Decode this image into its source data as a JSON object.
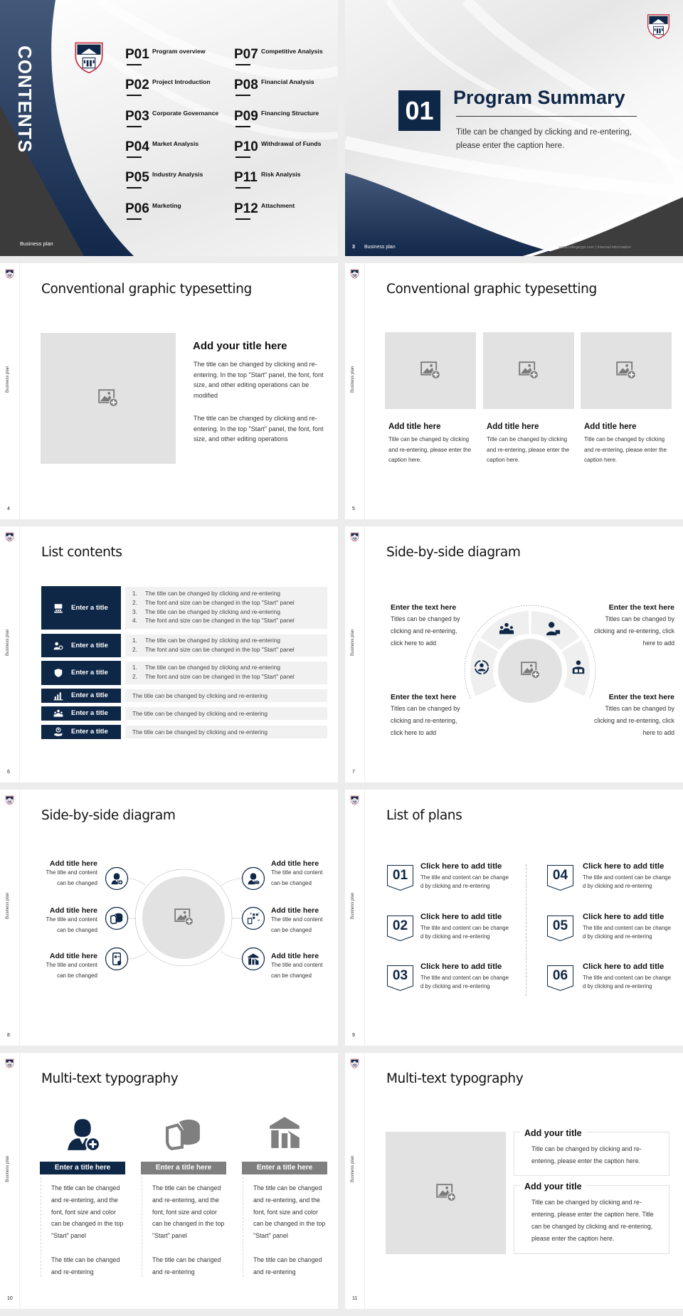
{
  "footer_label": "Business plan",
  "colors": {
    "navy": "#0f2747",
    "gray_bar": "#7f7f7f",
    "placeholder": "#e3e2e2",
    "dark_gray": "#3b3b3b",
    "logo_red": "#c8344a"
  },
  "contents": {
    "title": "CONTENTS",
    "items": [
      {
        "code": "P01",
        "label": "Program overview"
      },
      {
        "code": "P02",
        "label": "Project Introduction"
      },
      {
        "code": "P03",
        "label": "Corporate Governance"
      },
      {
        "code": "P04",
        "label": "Market Analysis"
      },
      {
        "code": "P05",
        "label": "Industry Analysis"
      },
      {
        "code": "P06",
        "label": "Marketing"
      },
      {
        "code": "P07",
        "label": "Competitive Analysis"
      },
      {
        "code": "P08",
        "label": "Financial Analysis"
      },
      {
        "code": "P09",
        "label": "Financing Structure"
      },
      {
        "code": "P10",
        "label": "Withdrawal of Funds"
      },
      {
        "code": "P11",
        "label": "Risk Analysis"
      },
      {
        "code": "P12",
        "label": "Attachment"
      }
    ]
  },
  "section": {
    "page": "3",
    "number": "01",
    "title": "Program Summary",
    "caption": "Title can be changed by clicking and re-entering, please enter the caption here.",
    "url": "www.collegeppt.com | Internal information"
  },
  "p4": {
    "page": "4",
    "title": "Conventional graphic typesetting",
    "heading": "Add your title here",
    "para1": "The title can be changed by clicking and re-entering. In the top \"Start\" panel, the font, font size, and other editing operations can be modified",
    "para2": "The title can be changed by clicking and re-entering. In the top \"Start\" panel, the font, font size, and other editing operations"
  },
  "p5": {
    "page": "5",
    "title": "Conventional graphic typesetting",
    "cards": [
      {
        "title": "Add title here",
        "text": "Title can be changed by clicking and re-entering, please enter the caption here."
      },
      {
        "title": "Add title here",
        "text": "Title can be changed by clicking and re-entering, please enter the caption here."
      },
      {
        "title": "Add title here",
        "text": "Title can be changed by clicking and re-entering, please enter the caption here."
      }
    ]
  },
  "p6": {
    "page": "6",
    "title": "List contents",
    "rows": [
      {
        "label": "Enter a title",
        "icon": "presentation-icon",
        "lines": [
          "The title can be changed by clicking and re-entering",
          "The font and size can be changed in the top \"Start\" panel",
          "The title can be changed by clicking and re-entering",
          "The font and size can be changed in the top \"Start\" panel"
        ]
      },
      {
        "label": "Enter a title",
        "icon": "users-icon",
        "lines": [
          "The title can be changed by clicking and re-entering",
          "The font and size can be changed in the top \"Start\" panel"
        ]
      },
      {
        "label": "Enter a title",
        "icon": "shield-icon",
        "lines": [
          "The title can be changed by clicking and re-entering",
          "The font and size can be changed in the top \"Start\" panel"
        ]
      },
      {
        "label": "Enter a title",
        "icon": "bar-chart-icon",
        "text": "The title can be changed by clicking and re-entering"
      },
      {
        "label": "Enter a title",
        "icon": "team-icon",
        "text": "The title can be changed by clicking and re-entering"
      },
      {
        "label": "Enter a title",
        "icon": "hand-user-icon",
        "text": "The title can be changed by clicking and re-entering"
      }
    ]
  },
  "p7": {
    "page": "7",
    "title": "Side-by-side diagram",
    "blocks": [
      {
        "title": "Enter the text here",
        "text": "Titles can be changed by clicking and re-entering, click here to add"
      },
      {
        "title": "Enter the text here",
        "text": "Titles can be changed by clicking and re-entering, click here to add"
      },
      {
        "title": "Enter the text here",
        "text": "Titles can be changed by clicking and re-entering, click here to add"
      },
      {
        "title": "Enter the text here",
        "text": "Titles can be changed by clicking and re-entering, click here to add"
      }
    ],
    "icons": [
      "user-cycle-icon",
      "team-icon",
      "user-contact-icon",
      "reader-icon"
    ]
  },
  "p8": {
    "page": "8",
    "title": "Side-by-side diagram",
    "items": [
      {
        "title": "Add title here",
        "text": "The title and content can be changed",
        "icon": "user-add-icon"
      },
      {
        "title": "Add title here",
        "text": "The title and content can be changed",
        "icon": "pie-chart-3d-icon"
      },
      {
        "title": "Add title here",
        "text": "The title and content can be changed",
        "icon": "mobile-contact-icon"
      },
      {
        "title": "Add title here",
        "text": "The title and content can be changed",
        "icon": "user-mail-icon"
      },
      {
        "title": "Add title here",
        "text": "The title and content can be changed",
        "icon": "qr-scan-icon"
      },
      {
        "title": "Add title here",
        "text": "The title and content can be changed",
        "icon": "store-icon"
      }
    ]
  },
  "p9": {
    "page": "9",
    "title": "List of plans",
    "items": [
      {
        "num": "01",
        "title": "Click here to add title",
        "text": "The title and content can be changed by clicking and re-entering"
      },
      {
        "num": "02",
        "title": "Click here to add title",
        "text": "The title and content can be changed by clicking and re-entering"
      },
      {
        "num": "03",
        "title": "Click here to add title",
        "text": "The title and content can be changed by clicking and re-entering"
      },
      {
        "num": "04",
        "title": "Click here to add title",
        "text": "The title and content can be changed by clicking and re-entering"
      },
      {
        "num": "05",
        "title": "Click here to add title",
        "text": "The title and content can be changed by clicking and re-entering"
      },
      {
        "num": "06",
        "title": "Click here to add title",
        "text": "The title and content can be changed by clicking and re-entering"
      }
    ]
  },
  "p10": {
    "page": "10",
    "title": "Multi-text typography",
    "columns": [
      {
        "icon": "user-add-icon",
        "header": "Enter a title here",
        "para1": "The title can be changed and re-entering, and the font, font size and color can be changed in the top \"Start\" panel",
        "para2": "The title can be changed and re-entering"
      },
      {
        "icon": "pie-chart-3d-icon",
        "header": "Enter a title here",
        "para1": "The title can be changed and re-entering, and the font, font size and color can be changed in the top \"Start\" panel",
        "para2": "The title can be changed and re-entering"
      },
      {
        "icon": "store-icon",
        "header": "Enter a title here",
        "para1": "The title can be changed and re-entering, and the font, font size and color can be changed in the top \"Start\" panel",
        "para2": "The title can be changed and re-entering"
      }
    ]
  },
  "p11": {
    "page": "11",
    "title": "Multi-text typography",
    "boxes": [
      {
        "title": "Add your title",
        "text": "Title can be changed by clicking and re-entering, please enter the caption here."
      },
      {
        "title": "Add your title",
        "text": "Title can be changed by clicking and re-entering, please enter the caption here. Title can be changed by clicking and re-entering, please enter the caption here."
      }
    ]
  }
}
